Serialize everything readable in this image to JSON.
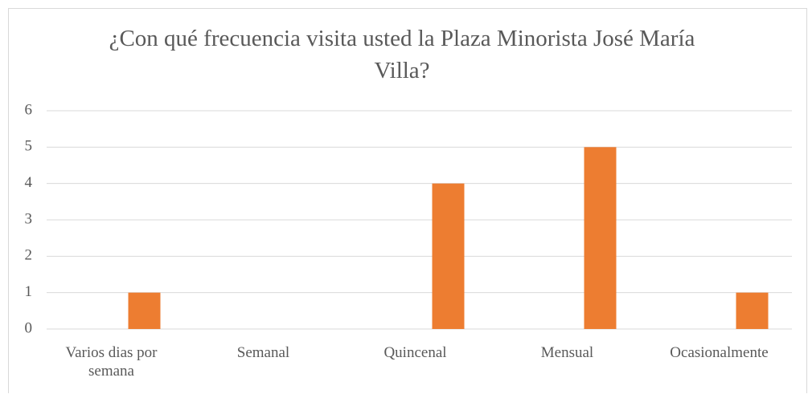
{
  "chart_data": {
    "type": "bar",
    "title": "¿Con qué frecuencia visita usted la Plaza Minorista José María Villa?",
    "categories": [
      "Varios dias por semana",
      "Semanal",
      "Quincenal",
      "Mensual",
      "Ocasionalmente"
    ],
    "values": [
      1,
      0,
      4,
      5,
      1
    ],
    "color": "#ed7d31",
    "ylim": [
      0,
      6
    ],
    "yticks": [
      0,
      1,
      2,
      3,
      4,
      5,
      6
    ],
    "grid": true
  }
}
